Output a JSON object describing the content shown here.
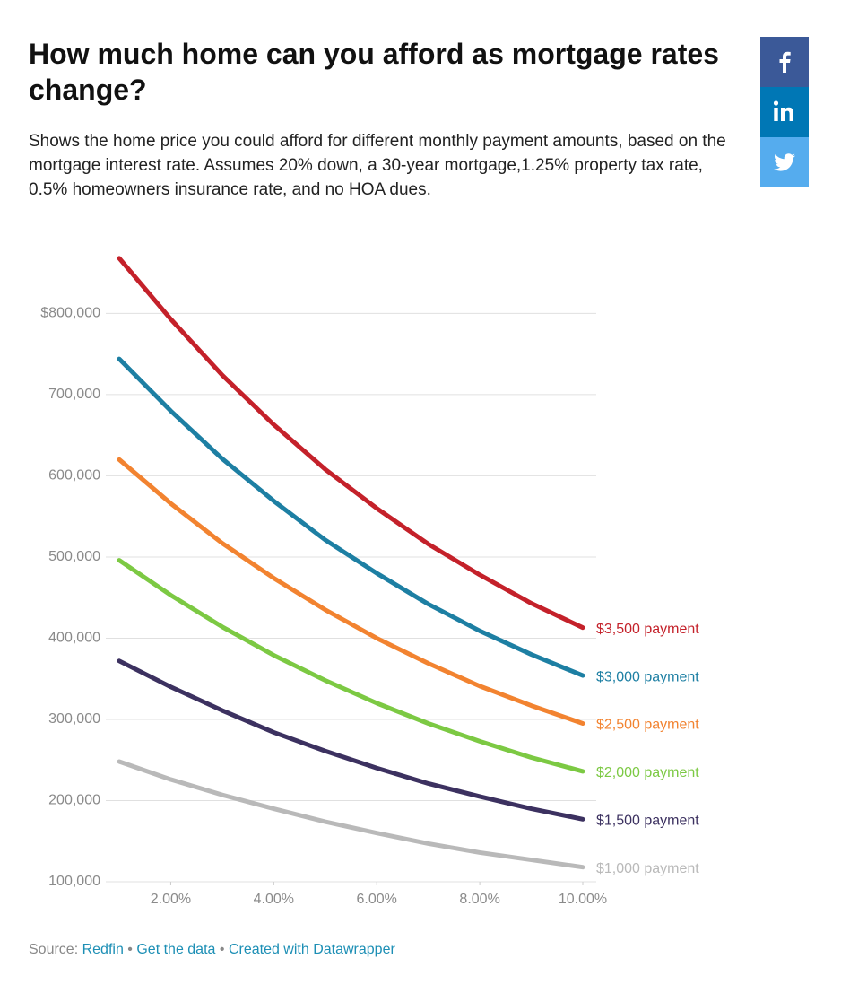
{
  "header": {
    "title": "How much home can you afford as mortgage rates change?",
    "subtitle": "Shows the home price you could afford for different monthly payment amounts, based on the mortgage interest rate. Assumes 20% down, a 30-year mortgage,1.25% property tax rate, 0.5% homeowners insurance rate, and no HOA dues."
  },
  "chart_data": {
    "type": "line",
    "x": [
      1,
      2,
      3,
      4,
      5,
      6,
      7,
      8,
      9,
      10
    ],
    "xlim": [
      1,
      10
    ],
    "xticks": [
      {
        "value": 2,
        "label": "2.00%"
      },
      {
        "value": 4,
        "label": "4.00%"
      },
      {
        "value": 6,
        "label": "6.00%"
      },
      {
        "value": 8,
        "label": "8.00%"
      },
      {
        "value": 10,
        "label": "10.00%"
      }
    ],
    "ylim": [
      100000,
      880000
    ],
    "yticks": [
      {
        "value": 100000,
        "label": "100,000"
      },
      {
        "value": 200000,
        "label": "200,000"
      },
      {
        "value": 300000,
        "label": "300,000"
      },
      {
        "value": 400000,
        "label": "400,000"
      },
      {
        "value": 500000,
        "label": "500,000"
      },
      {
        "value": 600000,
        "label": "600,000"
      },
      {
        "value": 700000,
        "label": "700,000"
      },
      {
        "value": 800000,
        "label": "$800,000"
      }
    ],
    "grid": true,
    "series": [
      {
        "name": "$3,500 payment",
        "color": "#c4212a",
        "values": [
          868000,
          793000,
          724000,
          663000,
          608000,
          560000,
          516000,
          478000,
          443000,
          413000
        ]
      },
      {
        "name": "$3,000 payment",
        "color": "#1d7fa3",
        "values": [
          744000,
          680000,
          621000,
          569000,
          521000,
          480000,
          442000,
          409000,
          380000,
          354000
        ]
      },
      {
        "name": "$2,500 payment",
        "color": "#f28330",
        "values": [
          620000,
          566000,
          517000,
          474000,
          435000,
          400000,
          369000,
          341000,
          317000,
          295000
        ]
      },
      {
        "name": "$2,000 payment",
        "color": "#7cc943",
        "values": [
          496000,
          453000,
          414000,
          379000,
          348000,
          320000,
          295000,
          273000,
          253000,
          236000
        ]
      },
      {
        "name": "$1,500 payment",
        "color": "#3c3160",
        "values": [
          372000,
          340000,
          311000,
          284000,
          261000,
          240000,
          221000,
          205000,
          190000,
          177000
        ]
      },
      {
        "name": "$1,000 payment",
        "color": "#b9b9b9",
        "values": [
          248000,
          226000,
          207000,
          190000,
          174000,
          160000,
          147000,
          136000,
          127000,
          118000
        ]
      }
    ]
  },
  "footer": {
    "source_label": "Source:",
    "source": "Redfin",
    "separator": "•",
    "data_link": "Get the data",
    "credit": "Created with Datawrapper"
  }
}
